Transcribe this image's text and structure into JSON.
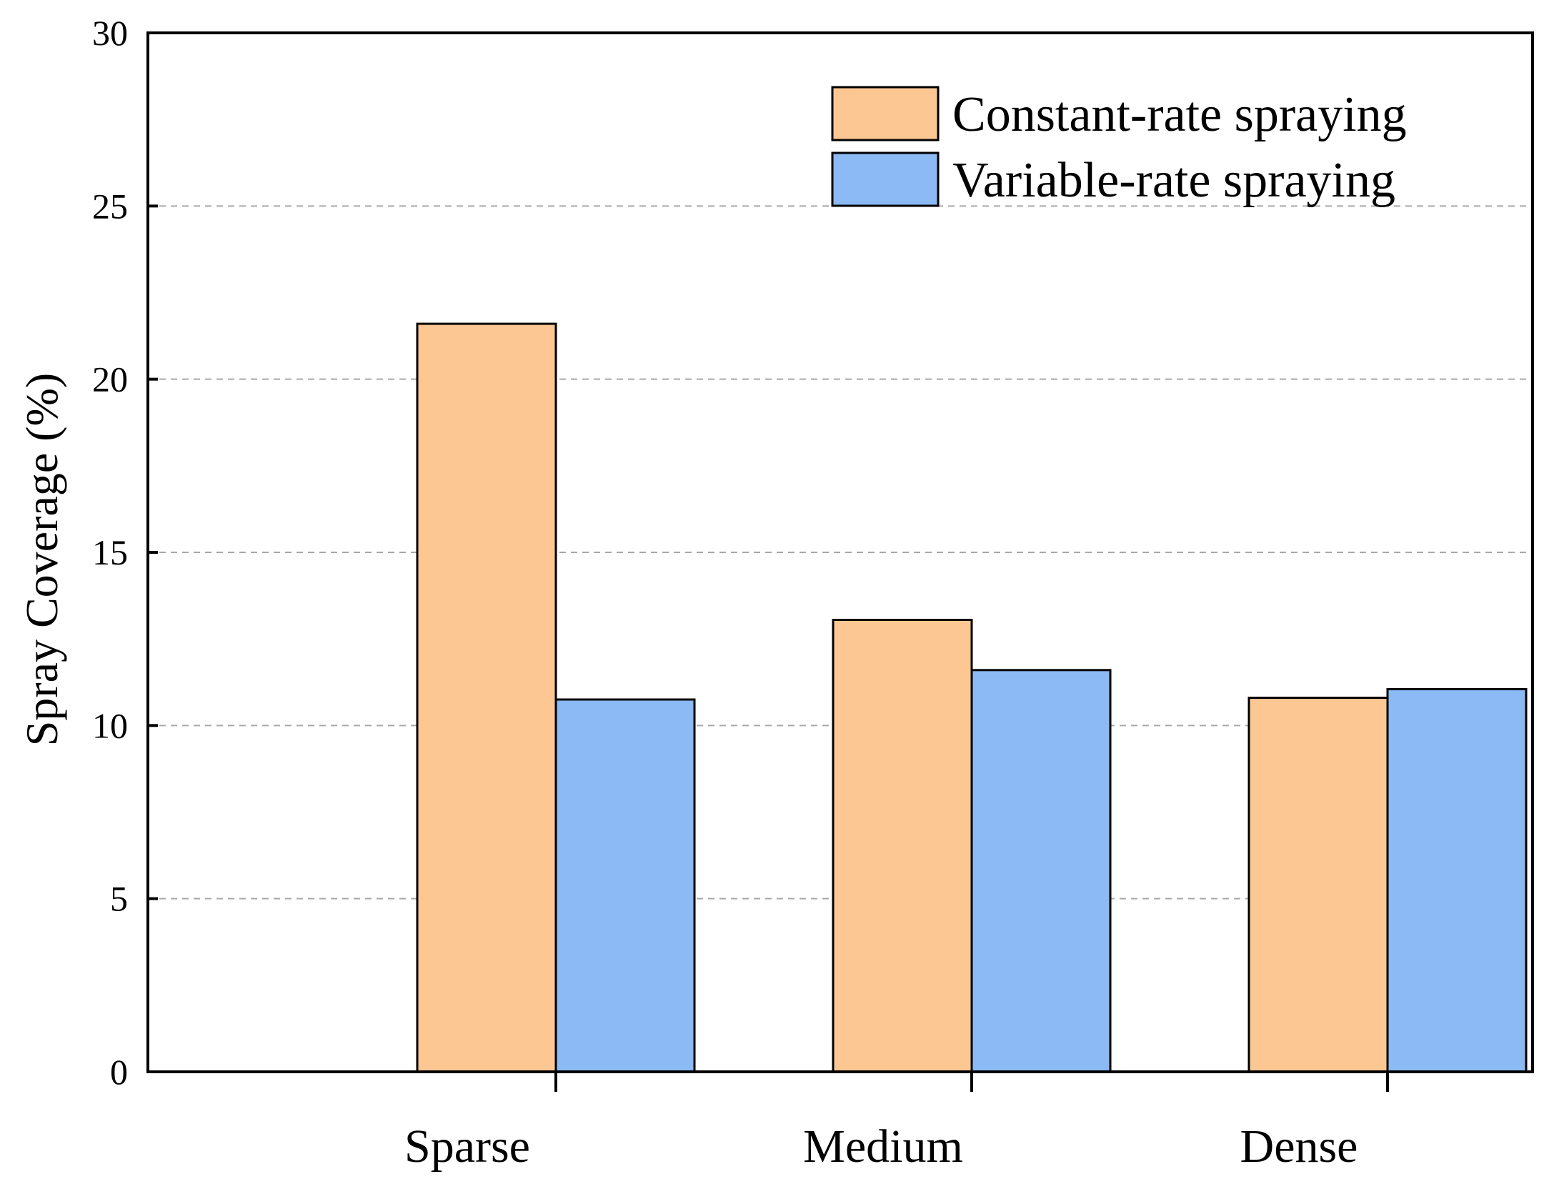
{
  "chart_data": {
    "type": "bar",
    "title": "",
    "xlabel": "",
    "ylabel": "Spray Coverage (%)",
    "categories": [
      "Sparse",
      "Medium",
      "Dense"
    ],
    "series": [
      {
        "name": "Constant-rate spraying",
        "values": [
          21.6,
          13.05,
          10.8
        ],
        "color": "#fdc794"
      },
      {
        "name": "Variable-rate spraying",
        "values": [
          10.75,
          11.6,
          11.05
        ],
        "color": "#8bbaf4"
      }
    ],
    "ylim": [
      0,
      30
    ],
    "yticks": [
      0,
      5,
      10,
      15,
      20,
      25,
      30
    ],
    "grid": true,
    "legend_position": "top-right"
  }
}
